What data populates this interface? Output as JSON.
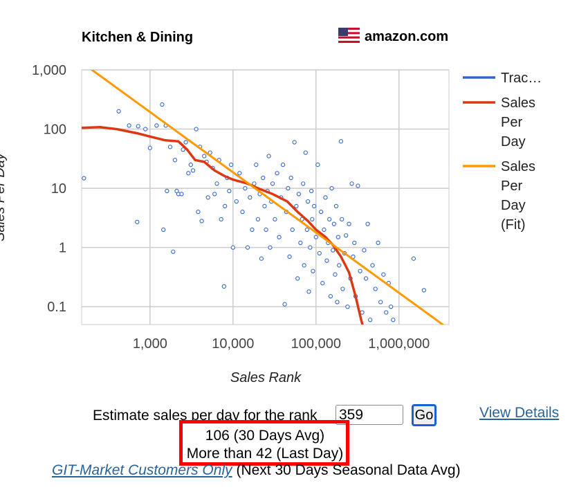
{
  "header": {
    "category": "Kitchen & Dining",
    "marketplace": "amazon.com",
    "flag_icon": "us-flag-icon"
  },
  "chart_data": {
    "type": "scatter",
    "x_scale": "log",
    "y_scale": "log",
    "xlabel": "Sales Rank",
    "ylabel": "Sales Per Day",
    "xlim": [
      150,
      4000000
    ],
    "ylim": [
      0.05,
      1000
    ],
    "x_ticks": [
      {
        "value": 1000,
        "label": "1,000"
      },
      {
        "value": 10000,
        "label": "10,000"
      },
      {
        "value": 100000,
        "label": "100,000"
      },
      {
        "value": 1000000,
        "label": "1,000,000"
      }
    ],
    "y_ticks": [
      {
        "value": 1000,
        "label": "1,000"
      },
      {
        "value": 100,
        "label": "100"
      },
      {
        "value": 10,
        "label": "10"
      },
      {
        "value": 1,
        "label": "1"
      },
      {
        "value": 0.1,
        "label": "0.1"
      }
    ],
    "grid": true,
    "legend_position": "right",
    "series": [
      {
        "name": "Trac…",
        "kind": "scatter",
        "color": "#3366cc",
        "points": [
          [
            160,
            14.8
          ],
          [
            420,
            200
          ],
          [
            560,
            115
          ],
          [
            700,
            2.7
          ],
          [
            720,
            112
          ],
          [
            880,
            100
          ],
          [
            1000,
            48
          ],
          [
            1200,
            115
          ],
          [
            1400,
            260
          ],
          [
            1450,
            2.0
          ],
          [
            1550,
            115
          ],
          [
            1600,
            9
          ],
          [
            1750,
            50
          ],
          [
            1900,
            0.85
          ],
          [
            2000,
            30
          ],
          [
            2100,
            9
          ],
          [
            2200,
            8
          ],
          [
            2400,
            8
          ],
          [
            2500,
            45
          ],
          [
            2700,
            60
          ],
          [
            2900,
            18
          ],
          [
            3100,
            25
          ],
          [
            3300,
            20
          ],
          [
            3600,
            100
          ],
          [
            3800,
            4
          ],
          [
            4000,
            50
          ],
          [
            4200,
            2.8
          ],
          [
            4500,
            35
          ],
          [
            4800,
            28
          ],
          [
            5000,
            7
          ],
          [
            5300,
            40
          ],
          [
            5700,
            22
          ],
          [
            6000,
            8
          ],
          [
            6400,
            12
          ],
          [
            6800,
            30
          ],
          [
            7200,
            3
          ],
          [
            7800,
            0.22
          ],
          [
            8000,
            5
          ],
          [
            8500,
            15
          ],
          [
            9000,
            9
          ],
          [
            9500,
            25
          ],
          [
            10000,
            1
          ],
          [
            11000,
            6
          ],
          [
            12000,
            18
          ],
          [
            13000,
            4
          ],
          [
            14000,
            10
          ],
          [
            15000,
            1
          ],
          [
            16000,
            7
          ],
          [
            17000,
            2
          ],
          [
            18000,
            12
          ],
          [
            19000,
            25
          ],
          [
            20000,
            3
          ],
          [
            21000,
            8
          ],
          [
            22000,
            0.65
          ],
          [
            23000,
            15
          ],
          [
            24000,
            5
          ],
          [
            25000,
            2
          ],
          [
            26000,
            9
          ],
          [
            27000,
            35
          ],
          [
            28000,
            1
          ],
          [
            29000,
            6
          ],
          [
            30000,
            12
          ],
          [
            32000,
            3
          ],
          [
            34000,
            18
          ],
          [
            36000,
            1.5
          ],
          [
            38000,
            7
          ],
          [
            40000,
            25
          ],
          [
            42000,
            0.11
          ],
          [
            44000,
            4
          ],
          [
            46000,
            10
          ],
          [
            48000,
            0.7
          ],
          [
            50000,
            15
          ],
          [
            52000,
            2
          ],
          [
            55000,
            60
          ],
          [
            58000,
            5
          ],
          [
            60000,
            0.3
          ],
          [
            62000,
            8
          ],
          [
            65000,
            1.2
          ],
          [
            68000,
            3
          ],
          [
            70000,
            12
          ],
          [
            72000,
            0.5
          ],
          [
            75000,
            40
          ],
          [
            78000,
            2
          ],
          [
            80000,
            6
          ],
          [
            82000,
            0.18
          ],
          [
            85000,
            1
          ],
          [
            88000,
            9
          ],
          [
            90000,
            3
          ],
          [
            92000,
            0.4
          ],
          [
            95000,
            5
          ],
          [
            100000,
            1.5
          ],
          [
            105000,
            25
          ],
          [
            110000,
            0.8
          ],
          [
            115000,
            4
          ],
          [
            120000,
            0.25
          ],
          [
            125000,
            2
          ],
          [
            130000,
            7
          ],
          [
            135000,
            0.6
          ],
          [
            140000,
            1.2
          ],
          [
            145000,
            3
          ],
          [
            150000,
            0.15
          ],
          [
            155000,
            10
          ],
          [
            160000,
            0.9
          ],
          [
            165000,
            2.5
          ],
          [
            170000,
            0.35
          ],
          [
            175000,
            5
          ],
          [
            180000,
            0.12
          ],
          [
            185000,
            1.5
          ],
          [
            190000,
            0.5
          ],
          [
            200000,
            62
          ],
          [
            205000,
            3
          ],
          [
            210000,
            0.2
          ],
          [
            220000,
            0.8
          ],
          [
            230000,
            1.6
          ],
          [
            240000,
            0.1
          ],
          [
            250000,
            2.5
          ],
          [
            260000,
            0.3
          ],
          [
            270000,
            12
          ],
          [
            280000,
            0.7
          ],
          [
            290000,
            1.2
          ],
          [
            300000,
            0.15
          ],
          [
            320000,
            11
          ],
          [
            340000,
            0.4
          ],
          [
            360000,
            0.08
          ],
          [
            380000,
            0.9
          ],
          [
            400000,
            0.3
          ],
          [
            420000,
            2.5
          ],
          [
            450000,
            0.06
          ],
          [
            480000,
            0.5
          ],
          [
            520000,
            0.2
          ],
          [
            560000,
            1.2
          ],
          [
            600000,
            0.12
          ],
          [
            650000,
            0.35
          ],
          [
            700000,
            0.08
          ],
          [
            750000,
            0.25
          ],
          [
            800000,
            0.1
          ],
          [
            850000,
            0.06
          ],
          [
            1500000,
            0.65
          ],
          [
            2000000,
            0.19
          ]
        ]
      },
      {
        "name": "Sales Per Day",
        "kind": "line",
        "color": "#dc3912",
        "points": [
          [
            150,
            105
          ],
          [
            250,
            108
          ],
          [
            400,
            100
          ],
          [
            700,
            85
          ],
          [
            1000,
            75
          ],
          [
            1500,
            65
          ],
          [
            2200,
            62
          ],
          [
            2800,
            45
          ],
          [
            3500,
            30
          ],
          [
            4500,
            28
          ],
          [
            6000,
            20
          ],
          [
            8000,
            16
          ],
          [
            10000,
            14
          ],
          [
            15000,
            12
          ],
          [
            20000,
            10
          ],
          [
            30000,
            8
          ],
          [
            45000,
            6
          ],
          [
            60000,
            4
          ],
          [
            80000,
            2.8
          ],
          [
            100000,
            2.0
          ],
          [
            130000,
            1.5
          ],
          [
            160000,
            1.1
          ],
          [
            200000,
            0.7
          ],
          [
            250000,
            0.38
          ],
          [
            300000,
            0.15
          ],
          [
            350000,
            0.06
          ],
          [
            370000,
            0.045
          ]
        ]
      },
      {
        "name": "Sales Per Day (Fit)",
        "kind": "line",
        "color": "#ff9900",
        "points": [
          [
            200,
            1000
          ],
          [
            3500000,
            0.048
          ]
        ]
      }
    ]
  },
  "controls": {
    "estimate_label": "Estimate sales per day for the rank",
    "rank_value": "359",
    "go_label": "Go",
    "view_details_label": "View Details"
  },
  "result": {
    "avg_30_days": "106 (30 Days Avg)",
    "last_day": "More than 42 (Last Day)"
  },
  "footer": {
    "link_label": "GIT-Market Customers Only",
    "note": " (Next 30 Days Seasonal Data Avg)"
  }
}
